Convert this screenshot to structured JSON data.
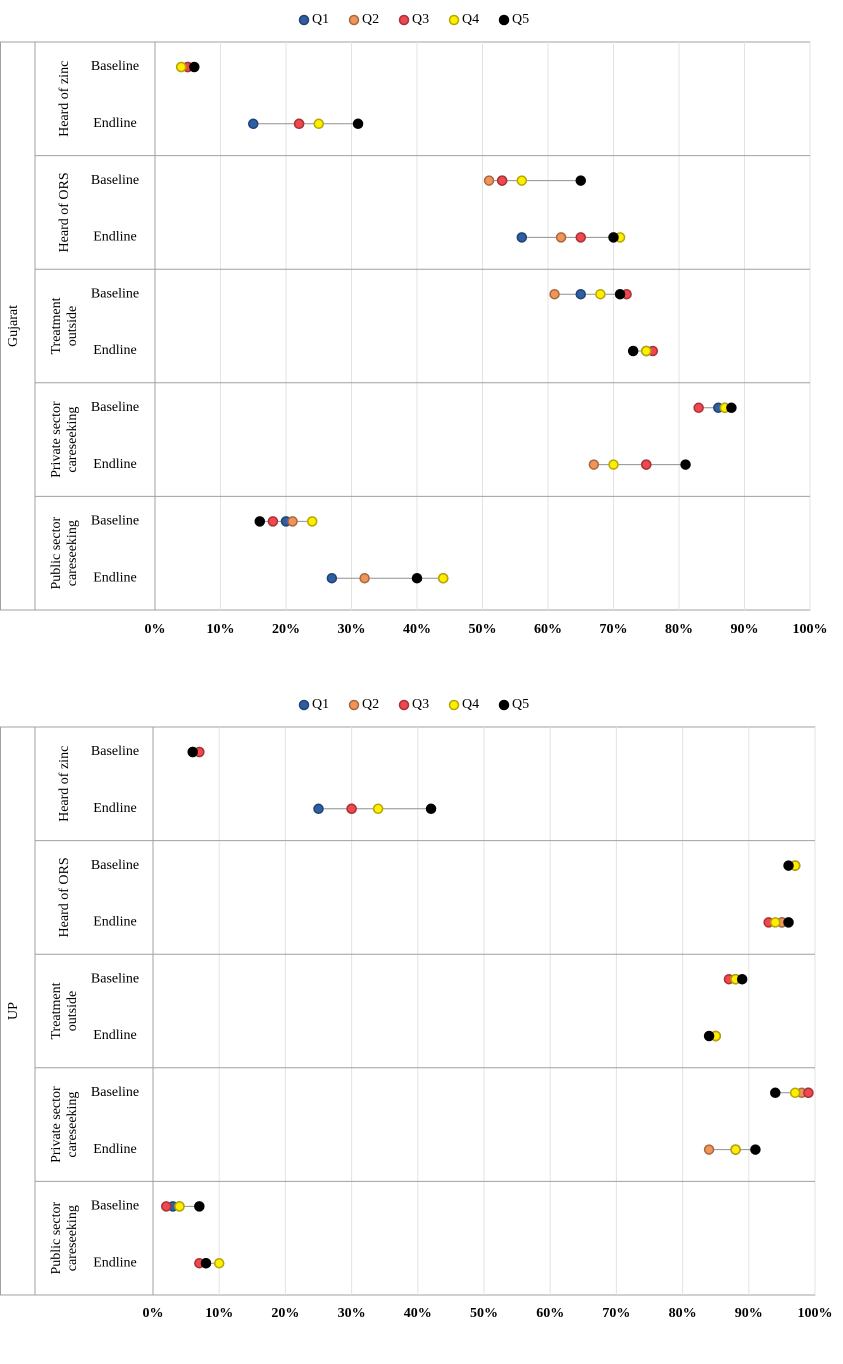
{
  "chart_data": [
    {
      "type": "dot",
      "region": "Gujarat",
      "groups": [
        [
          "Heard of zinc"
        ],
        [
          "Heard of ORS"
        ],
        [
          "Treatment",
          "outside"
        ],
        [
          "Private sector",
          "careseeking"
        ],
        [
          "Public sector",
          "careseeking"
        ]
      ],
      "subcategories": [
        "Baseline",
        "Endline"
      ],
      "series": [
        {
          "name": "Q1",
          "color": "#2e5fa3",
          "values": [
            5,
            15,
            53,
            56,
            65,
            75,
            86,
            75,
            20,
            27
          ]
        },
        {
          "name": "Q2",
          "color": "#f0955a",
          "values": [
            4,
            22,
            51,
            62,
            61,
            75,
            87,
            67,
            21,
            32
          ]
        },
        {
          "name": "Q3",
          "color": "#f0484e",
          "values": [
            5,
            22,
            53,
            65,
            72,
            76,
            83,
            75,
            18,
            44
          ]
        },
        {
          "name": "Q4",
          "color": "#ffee00",
          "values": [
            4,
            25,
            56,
            71,
            68,
            75,
            87,
            70,
            24,
            44
          ]
        },
        {
          "name": "Q5",
          "color": "#000000",
          "values": [
            6,
            31,
            65,
            70,
            71,
            73,
            88,
            81,
            16,
            40
          ]
        }
      ],
      "xlim": [
        0,
        100
      ],
      "xticks": [
        {
          "value": 0,
          "label": "0%"
        },
        {
          "value": 10,
          "label": "10%"
        },
        {
          "value": 20,
          "label": "20%"
        },
        {
          "value": 30,
          "label": "30%"
        },
        {
          "value": 40,
          "label": "40%"
        },
        {
          "value": 50,
          "label": "50%"
        },
        {
          "value": 60,
          "label": "60%"
        },
        {
          "value": 70,
          "label": "70%"
        },
        {
          "value": 80,
          "label": "80%"
        },
        {
          "value": 90,
          "label": "90%"
        },
        {
          "value": 100,
          "label": "100%"
        }
      ],
      "grid": true,
      "legend": "top"
    },
    {
      "type": "dot",
      "region": "UP",
      "groups": [
        [
          "Heard of zinc"
        ],
        [
          "Heard of ORS"
        ],
        [
          "Treatment",
          "outside"
        ],
        [
          "Private sector",
          "careseeking"
        ],
        [
          "Public sector",
          "careseeking"
        ]
      ],
      "subcategories": [
        "Baseline",
        "Endline"
      ],
      "series": [
        {
          "name": "Q1",
          "color": "#2e5fa3",
          "values": [
            6,
            25,
            97,
            95,
            88,
            85,
            99,
            88,
            3,
            8
          ]
        },
        {
          "name": "Q2",
          "color": "#f0955a",
          "values": [
            7,
            30,
            97,
            95,
            88,
            85,
            98,
            84,
            4,
            8
          ]
        },
        {
          "name": "Q3",
          "color": "#f0484e",
          "values": [
            7,
            30,
            97,
            93,
            87,
            85,
            99,
            88,
            2,
            7
          ]
        },
        {
          "name": "Q4",
          "color": "#ffee00",
          "values": [
            6,
            34,
            97,
            94,
            88,
            85,
            97,
            88,
            4,
            10
          ]
        },
        {
          "name": "Q5",
          "color": "#000000",
          "values": [
            6,
            42,
            96,
            96,
            89,
            84,
            94,
            91,
            7,
            8
          ]
        }
      ],
      "xlim": [
        0,
        100
      ],
      "xticks": [
        {
          "value": 0,
          "label": "0%"
        },
        {
          "value": 10,
          "label": "10%"
        },
        {
          "value": 20,
          "label": "20%"
        },
        {
          "value": 30,
          "label": "30%"
        },
        {
          "value": 40,
          "label": "40%"
        },
        {
          "value": 50,
          "label": "50%"
        },
        {
          "value": 60,
          "label": "60%"
        },
        {
          "value": 70,
          "label": "70%"
        },
        {
          "value": 80,
          "label": "80%"
        },
        {
          "value": 90,
          "label": "90%"
        },
        {
          "value": 100,
          "label": "100%"
        }
      ],
      "grid": true,
      "legend": "top"
    }
  ]
}
